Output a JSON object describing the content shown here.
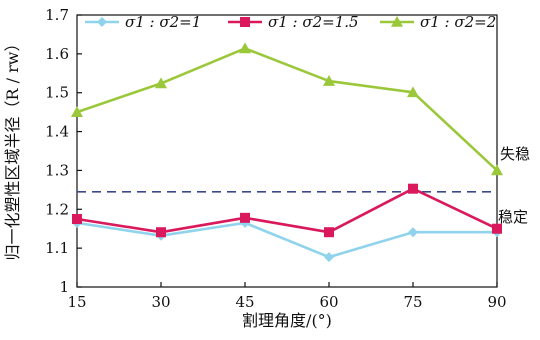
{
  "chart_data": {
    "type": "line",
    "xlabel": "割理角度/(°)",
    "ylabel": "归一化塑性区域半径（R / rw）",
    "x": [
      15,
      30,
      45,
      60,
      75,
      90
    ],
    "xlim": [
      15,
      90
    ],
    "ylim": [
      1.0,
      1.7
    ],
    "xticks": [
      15,
      30,
      45,
      60,
      75,
      90
    ],
    "yticks": [
      1.0,
      1.1,
      1.2,
      1.3,
      1.4,
      1.5,
      1.6,
      1.7
    ],
    "grid": false,
    "legend_position": "top",
    "series": [
      {
        "name": "σ1 : σ2=1",
        "color": "#8fd3ec",
        "marker": "diamond",
        "values": [
          1.165,
          1.132,
          1.165,
          1.077,
          1.141,
          1.141
        ]
      },
      {
        "name": "σ1 : σ2=1.5",
        "color": "#d9195c",
        "marker": "square",
        "values": [
          1.175,
          1.141,
          1.178,
          1.141,
          1.253,
          1.15
        ]
      },
      {
        "name": "σ1 : σ2=2",
        "color": "#9bc83a",
        "marker": "triangle",
        "values": [
          1.45,
          1.524,
          1.614,
          1.53,
          1.501,
          1.3
        ]
      }
    ],
    "threshold": {
      "value": 1.245,
      "color": "#3a4a8a",
      "style": "dashed"
    },
    "annotations": {
      "above": "失稳",
      "below": "稳定"
    }
  }
}
